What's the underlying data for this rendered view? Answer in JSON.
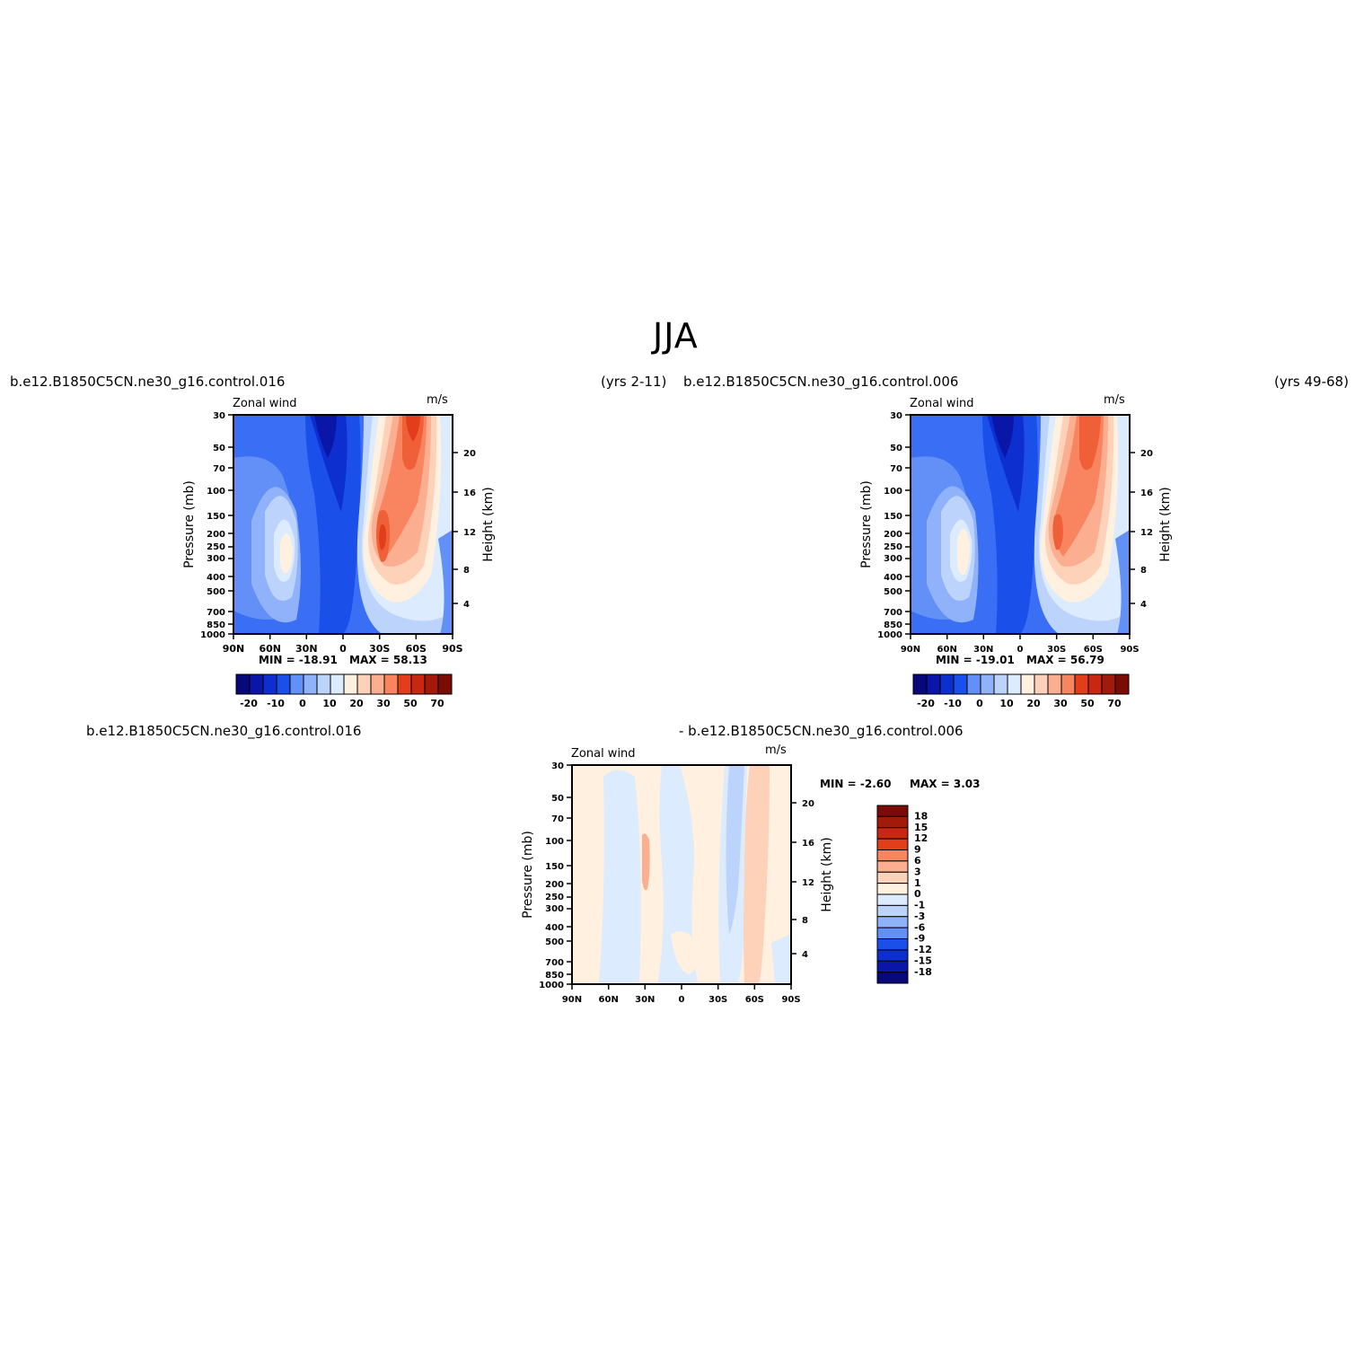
{
  "title": "JJA",
  "header": {
    "left_case": "b.e12.B1850C5CN.ne30_g16.control.016",
    "left_years": "(yrs 2-11)",
    "right_case": "b.e12.B1850C5CN.ne30_g16.control.006",
    "right_years": "(yrs 49-68)",
    "diff_case_a": "b.e12.B1850C5CN.ne30_g16.control.016",
    "diff_case_b": "- b.e12.B1850C5CN.ne30_g16.control.006"
  },
  "colors": {
    "mean_palette": [
      "#08087a",
      "#0a16a8",
      "#0d2fd0",
      "#1b4fea",
      "#3a6ef5",
      "#6390f7",
      "#8fb2fa",
      "#bcd3fb",
      "#dcebfd",
      "#fff0e0",
      "#fdd2b8",
      "#fcae90",
      "#f98560",
      "#f06038",
      "#e23e1c",
      "#c8280f",
      "#a21a0a",
      "#7a0c04"
    ],
    "diff_palette": [
      "#08087a",
      "#0a16a8",
      "#0d2fd0",
      "#1b4fea",
      "#3a6ef5",
      "#6390f7",
      "#8fb2fa",
      "#bcd3fb",
      "#dcebfd",
      "#fff0e0",
      "#fdd2b8",
      "#fcae90",
      "#f98560",
      "#f06038",
      "#e23e1c",
      "#c8280f",
      "#a21a0a",
      "#7a0c04"
    ]
  },
  "chart_data": [
    {
      "type": "heatmap",
      "title_left": "Zonal wind",
      "title_right": "m/s",
      "ylabel": "Pressure (mb)",
      "ylabel_right": "Height (km)",
      "x_ticks": [
        "90N",
        "60N",
        "30N",
        "0",
        "30S",
        "60S",
        "90S"
      ],
      "y_ticks": [
        "30",
        "50",
        "70",
        "100",
        "150",
        "200",
        "250",
        "300",
        "400",
        "500",
        "700",
        "850",
        "1000"
      ],
      "y_right_ticks": [
        "20",
        "16",
        "12",
        "8",
        "4"
      ],
      "min_label": "MIN = -18.91",
      "max_label": "MAX = 58.13",
      "colorbar_labels": [
        "-20",
        "-10",
        "0",
        "10",
        "20",
        "30",
        "50",
        "70"
      ]
    },
    {
      "type": "heatmap",
      "title_left": "Zonal wind",
      "title_right": "m/s",
      "ylabel": "Pressure (mb)",
      "ylabel_right": "Height (km)",
      "x_ticks": [
        "90N",
        "60N",
        "30N",
        "0",
        "30S",
        "60S",
        "90S"
      ],
      "y_ticks": [
        "30",
        "50",
        "70",
        "100",
        "150",
        "200",
        "250",
        "300",
        "400",
        "500",
        "700",
        "850",
        "1000"
      ],
      "y_right_ticks": [
        "20",
        "16",
        "12",
        "8",
        "4"
      ],
      "min_label": "MIN = -19.01",
      "max_label": "MAX = 56.79",
      "colorbar_labels": [
        "-20",
        "-10",
        "0",
        "10",
        "20",
        "30",
        "50",
        "70"
      ]
    },
    {
      "type": "heatmap",
      "title_left": "Zonal wind",
      "title_right": "m/s",
      "ylabel": "Pressure (mb)",
      "ylabel_right": "Height (km)",
      "x_ticks": [
        "90N",
        "60N",
        "30N",
        "0",
        "30S",
        "60S",
        "90S"
      ],
      "y_ticks": [
        "30",
        "50",
        "70",
        "100",
        "150",
        "200",
        "250",
        "300",
        "400",
        "500",
        "700",
        "850",
        "1000"
      ],
      "y_right_ticks": [
        "20",
        "16",
        "12",
        "8",
        "4"
      ],
      "min_label": "MIN = -2.60",
      "max_label": "MAX = 3.03",
      "colorbar_labels": [
        "18",
        "15",
        "12",
        "9",
        "6",
        "3",
        "1",
        "0",
        "-1",
        "-3",
        "-6",
        "-9",
        "-12",
        "-15",
        "-18"
      ]
    }
  ]
}
